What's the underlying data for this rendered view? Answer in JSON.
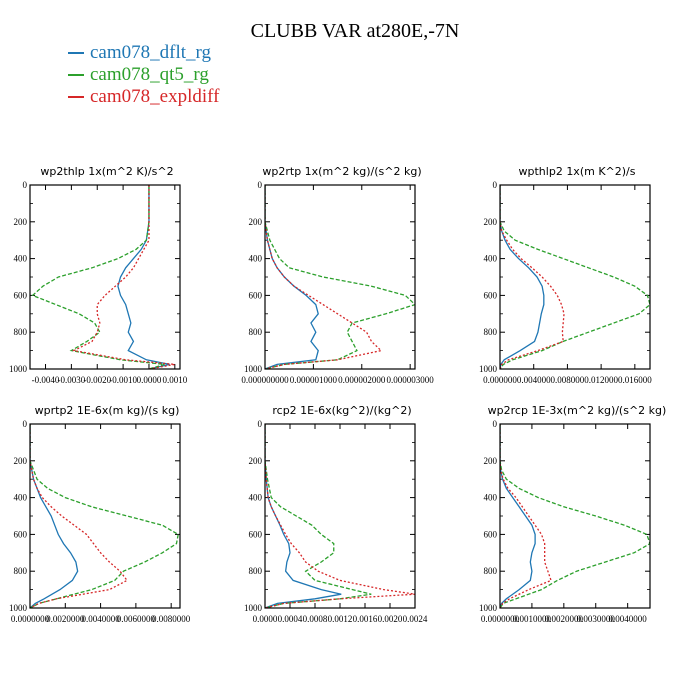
{
  "title": "CLUBB VAR at280E,-7N",
  "legend": [
    {
      "label": "cam078_dflt_rg",
      "color": "#1f77b4"
    },
    {
      "label": "cam078_qt5_rg",
      "color": "#2ca02c"
    },
    {
      "label": "cam078_expldiff",
      "color": "#d62728"
    }
  ],
  "chart_data": [
    {
      "type": "line",
      "title": "wp2thlp  1x(m^2 K)/s^2",
      "xlim": [
        -0.0046,
        0.0012
      ],
      "xticks": [
        -0.004,
        -0.003,
        -0.002,
        -0.001,
        0.0,
        0.001
      ],
      "xticklabels": [
        "-0.0040",
        "-0.0030",
        "-0.0020",
        "-0.0010",
        "0.0000",
        "0.0010"
      ],
      "ylim": [
        1000,
        0
      ],
      "yticks": [
        0,
        200,
        400,
        600,
        800,
        1000
      ],
      "y": [
        0,
        100,
        200,
        300,
        350,
        400,
        450,
        500,
        550,
        600,
        650,
        700,
        750,
        800,
        850,
        900,
        950,
        975,
        1000
      ],
      "series": [
        {
          "name": "cam078_dflt_rg",
          "color": "#1f77b4",
          "values": [
            0.0,
            0.0,
            0.0,
            -0.0001,
            -0.0003,
            -0.0006,
            -0.0009,
            -0.0011,
            -0.0012,
            -0.0011,
            -0.0009,
            -0.0008,
            -0.0007,
            -0.0008,
            -0.0006,
            -0.0008,
            -0.0001,
            0.0008,
            0.0
          ]
        },
        {
          "name": "cam078_qt5_rg",
          "color": "#2ca02c",
          "values": [
            0.0,
            0.0,
            0.0,
            -0.0001,
            -0.0005,
            -0.0012,
            -0.0022,
            -0.0035,
            -0.0041,
            -0.0045,
            -0.0036,
            -0.0027,
            -0.0021,
            -0.0019,
            -0.0024,
            -0.003,
            -0.0011,
            0.0006,
            0.0
          ]
        },
        {
          "name": "cam078_expldiff",
          "color": "#d62728",
          "values": [
            0.0,
            0.0,
            0.0,
            0.0,
            -0.0002,
            -0.0004,
            -0.0006,
            -0.0009,
            -0.0013,
            -0.0017,
            -0.002,
            -0.002,
            -0.0019,
            -0.002,
            -0.0022,
            -0.0029,
            -0.0009,
            0.001,
            0.0
          ]
        }
      ]
    },
    {
      "type": "line",
      "title": "wp2rtp  1x(m^2 kg)/(s^2 kg)",
      "xlim": [
        0.0,
        3.1e-06
      ],
      "xticks": [
        0.0,
        1e-06,
        2e-06,
        3e-06
      ],
      "xticklabels": [
        "0.000000000",
        "0.000001000",
        "0.000002000",
        "0.000003000"
      ],
      "ylim": [
        1000,
        0
      ],
      "yticks": [
        0,
        200,
        400,
        600,
        800,
        1000
      ],
      "y": [
        0,
        200,
        300,
        350,
        400,
        450,
        500,
        550,
        600,
        650,
        700,
        750,
        800,
        850,
        900,
        950,
        975,
        1000
      ],
      "series": [
        {
          "name": "cam078_dflt_rg",
          "color": "#1f77b4",
          "values": [
            0.0,
            0.0,
            5e-08,
            1e-07,
            1.5e-07,
            2.5e-07,
            4e-07,
            6e-07,
            8.5e-07,
            1.05e-06,
            1.1e-06,
            9.5e-07,
            1.05e-06,
            9.5e-07,
            1.1e-06,
            1.05e-06,
            2.5e-07,
            0.0
          ]
        },
        {
          "name": "cam078_qt5_rg",
          "color": "#2ca02c",
          "values": [
            0.0,
            0.0,
            1e-07,
            2e-07,
            3e-07,
            5e-07,
            1.2e-06,
            2.2e-06,
            2.9e-06,
            3.1e-06,
            2.5e-06,
            1.8e-06,
            1.7e-06,
            1.8e-06,
            1.9e-06,
            1.5e-06,
            4e-07,
            0.0
          ]
        },
        {
          "name": "cam078_expldiff",
          "color": "#d62728",
          "values": [
            0.0,
            0.0,
            5e-08,
            1e-07,
            1.5e-07,
            2.5e-07,
            4e-07,
            6e-07,
            9e-07,
            1.2e-06,
            1.5e-06,
            1.8e-06,
            2.1e-06,
            2.2e-06,
            2.4e-06,
            1.5e-06,
            4e-07,
            0.0
          ]
        }
      ]
    },
    {
      "type": "line",
      "title": "wpthlp2  1x(m K^2)/s",
      "xlim": [
        0.0,
        0.0178
      ],
      "xticks": [
        0.0,
        0.004,
        0.008,
        0.012,
        0.016
      ],
      "xticklabels": [
        "0.000000",
        "0.004000",
        "0.008000",
        "0.012000",
        "0.016000"
      ],
      "ylim": [
        1000,
        0
      ],
      "yticks": [
        0,
        200,
        400,
        600,
        800,
        1000
      ],
      "y": [
        0,
        200,
        250,
        300,
        350,
        400,
        450,
        500,
        550,
        600,
        650,
        700,
        750,
        800,
        850,
        900,
        950,
        975,
        1000
      ],
      "series": [
        {
          "name": "cam078_dflt_rg",
          "color": "#1f77b4",
          "values": [
            0.0,
            0.0,
            0.0002,
            0.0006,
            0.0012,
            0.0022,
            0.0034,
            0.0044,
            0.005,
            0.0052,
            0.0052,
            0.0049,
            0.0047,
            0.0045,
            0.0041,
            0.0024,
            0.0005,
            0.0001,
            0.0
          ]
        },
        {
          "name": "cam078_qt5_rg",
          "color": "#2ca02c",
          "values": [
            0.0,
            0.0,
            0.0005,
            0.0018,
            0.0045,
            0.0075,
            0.0105,
            0.0135,
            0.016,
            0.0175,
            0.0178,
            0.0165,
            0.0135,
            0.0105,
            0.0075,
            0.005,
            0.0015,
            0.0004,
            0.0
          ]
        },
        {
          "name": "cam078_expldiff",
          "color": "#d62728",
          "values": [
            0.0,
            0.0,
            0.0002,
            0.0008,
            0.0015,
            0.0025,
            0.0038,
            0.005,
            0.006,
            0.0068,
            0.0073,
            0.0076,
            0.0075,
            0.0074,
            0.0075,
            0.0045,
            0.001,
            0.0002,
            0.0
          ]
        }
      ]
    },
    {
      "type": "line",
      "title": "wprtp2  1E-6x(m kg)/(s kg)",
      "xlim": [
        0.0,
        0.0085
      ],
      "xticks": [
        0.0,
        0.002,
        0.004,
        0.006,
        0.008
      ],
      "xticklabels": [
        "0.0000000",
        "0.0020000",
        "0.0040000",
        "0.0060000",
        "0.0080000"
      ],
      "ylim": [
        1000,
        0
      ],
      "yticks": [
        0,
        200,
        400,
        600,
        800,
        1000
      ],
      "y": [
        0,
        200,
        250,
        300,
        350,
        400,
        450,
        500,
        550,
        600,
        650,
        700,
        750,
        800,
        850,
        900,
        950,
        975,
        1000
      ],
      "series": [
        {
          "name": "cam078_dflt_rg",
          "color": "#1f77b4",
          "values": [
            0.0,
            0.0,
            0.0001,
            0.0002,
            0.0004,
            0.0006,
            0.0009,
            0.0012,
            0.0014,
            0.0016,
            0.0019,
            0.0023,
            0.0026,
            0.0027,
            0.0024,
            0.0017,
            0.0008,
            0.0003,
            0.0
          ]
        },
        {
          "name": "cam078_qt5_rg",
          "color": "#2ca02c",
          "values": [
            0.0,
            0.0,
            0.0002,
            0.0004,
            0.001,
            0.002,
            0.0035,
            0.0055,
            0.0075,
            0.0084,
            0.0083,
            0.0075,
            0.0065,
            0.0053,
            0.0048,
            0.0035,
            0.0015,
            0.0005,
            0.0
          ]
        },
        {
          "name": "cam078_expldiff",
          "color": "#d62728",
          "values": [
            0.0,
            0.0,
            0.0001,
            0.0002,
            0.0004,
            0.0007,
            0.0012,
            0.0018,
            0.0025,
            0.0032,
            0.0036,
            0.004,
            0.0045,
            0.0051,
            0.0055,
            0.0045,
            0.0015,
            0.0005,
            0.0
          ]
        }
      ]
    },
    {
      "type": "line",
      "title": "rcp2  1E-6x(kg^2)/(kg^2)",
      "xlim": [
        0.0,
        0.0024
      ],
      "xticks": [
        0.0,
        0.0004,
        0.0008,
        0.0012,
        0.0016,
        0.002,
        0.0024
      ],
      "xticklabels": [
        "0.0000",
        "0.0004",
        "0.0008",
        "0.0012",
        "0.0016",
        "0.0020",
        "0.0024"
      ],
      "ylim": [
        1000,
        0
      ],
      "yticks": [
        0,
        200,
        400,
        600,
        800,
        1000
      ],
      "y": [
        0,
        200,
        300,
        400,
        450,
        500,
        550,
        600,
        650,
        700,
        750,
        800,
        850,
        900,
        925,
        950,
        975,
        1000
      ],
      "series": [
        {
          "name": "cam078_dflt_rg",
          "color": "#1f77b4",
          "values": [
            0.0,
            0.0,
            2e-05,
            5e-05,
            0.0001,
            0.00017,
            0.00024,
            0.0003,
            0.00038,
            0.0004,
            0.00035,
            0.00033,
            0.00045,
            0.0009,
            0.00122,
            0.0008,
            0.0002,
            0.0
          ]
        },
        {
          "name": "cam078_qt5_rg",
          "color": "#2ca02c",
          "values": [
            0.0,
            0.0,
            4e-05,
            0.0001,
            0.00025,
            0.0005,
            0.00075,
            0.0009,
            0.0011,
            0.0011,
            0.0009,
            0.00065,
            0.0008,
            0.0014,
            0.0017,
            0.0012,
            0.0003,
            0.0
          ]
        },
        {
          "name": "cam078_expldiff",
          "color": "#d62728",
          "values": [
            0.0,
            0.0,
            2e-05,
            5e-05,
            0.0001,
            0.00017,
            0.00025,
            0.00033,
            0.00042,
            0.00055,
            0.00065,
            0.00085,
            0.0012,
            0.0019,
            0.0024,
            0.0012,
            0.0003,
            0.0
          ]
        }
      ]
    },
    {
      "type": "line",
      "title": "wp2rcp  1E-3x(m^2 kg)/(s^2 kg)",
      "xlim": [
        0.0,
        0.0047
      ],
      "xticks": [
        0.0,
        0.001,
        0.002,
        0.003,
        0.004
      ],
      "xticklabels": [
        "0.0000000",
        "0.0010000",
        "0.0020000",
        "0.0030000",
        "0.0040000"
      ],
      "ylim": [
        1000,
        0
      ],
      "yticks": [
        0,
        200,
        400,
        600,
        800,
        1000
      ],
      "y": [
        0,
        200,
        250,
        300,
        350,
        400,
        450,
        500,
        550,
        600,
        650,
        700,
        750,
        800,
        850,
        900,
        950,
        975,
        1000
      ],
      "series": [
        {
          "name": "cam078_dflt_rg",
          "color": "#1f77b4",
          "values": [
            0.0,
            0.0,
            2e-05,
            8e-05,
            0.0002,
            0.0004,
            0.0006,
            0.0008,
            0.001,
            0.0011,
            0.0011,
            0.001,
            0.00095,
            0.001,
            0.00095,
            0.0006,
            0.0002,
            5e-05,
            0.0
          ]
        },
        {
          "name": "cam078_qt5_rg",
          "color": "#2ca02c",
          "values": [
            0.0,
            0.0,
            5e-05,
            0.0002,
            0.0006,
            0.0012,
            0.002,
            0.003,
            0.0039,
            0.0046,
            0.0047,
            0.0042,
            0.0033,
            0.0024,
            0.0018,
            0.0013,
            0.0005,
            0.0001,
            0.0
          ]
        },
        {
          "name": "cam078_expldiff",
          "color": "#d62728",
          "values": [
            0.0,
            0.0,
            2e-05,
            0.0001,
            0.00025,
            0.0005,
            0.0007,
            0.0009,
            0.0011,
            0.0013,
            0.0014,
            0.0014,
            0.0014,
            0.0015,
            0.0016,
            0.0009,
            0.0003,
            8e-05,
            0.0
          ]
        }
      ]
    }
  ]
}
